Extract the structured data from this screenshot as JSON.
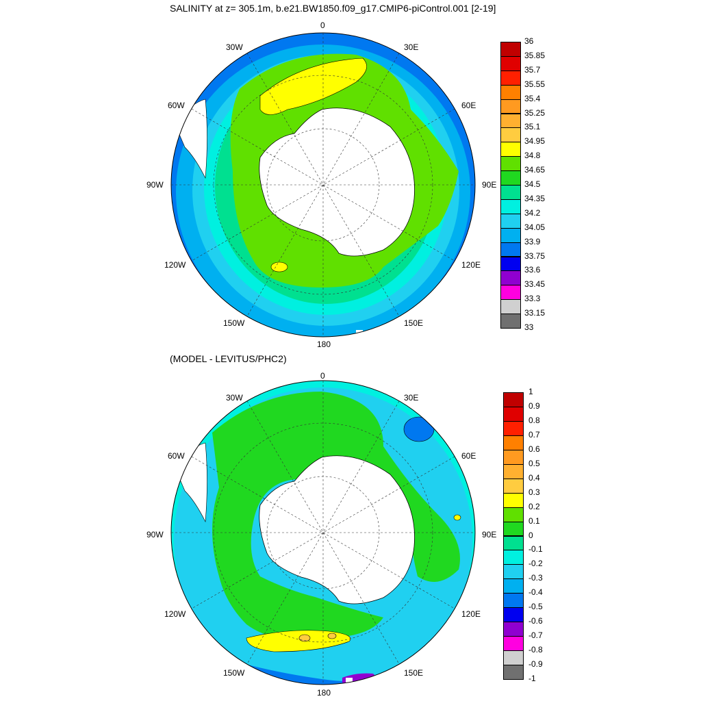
{
  "figure": {
    "title_top": "SALINITY at z= 305.1m, b.e21.BW1850.f09_g17.CMIP6-piControl.001 [2-19]",
    "title_bottom": "(MODEL - LEVITUS/PHC2)"
  },
  "map_labels": {
    "north": "0",
    "south": "180",
    "w30": "30W",
    "e30": "30E",
    "w60": "60W",
    "e60": "60E",
    "w90": "90W",
    "e90": "90E",
    "w120": "120W",
    "e120": "120E",
    "w150": "150W",
    "e150": "150E"
  },
  "colorbar_top": {
    "labels": [
      "36",
      "35.85",
      "35.7",
      "35.55",
      "35.4",
      "35.25",
      "35.1",
      "34.95",
      "34.8",
      "34.65",
      "34.5",
      "34.35",
      "34.2",
      "34.05",
      "33.9",
      "33.75",
      "33.6",
      "33.45",
      "33.3",
      "33.15",
      "33"
    ],
    "colors": [
      "#c00000",
      "#e00000",
      "#ff2000",
      "#ff8000",
      "#ff9a20",
      "#ffb030",
      "#ffcc40",
      "#ffff00",
      "#60e000",
      "#20d820",
      "#00e090",
      "#00f0e0",
      "#20d0f0",
      "#00b0f0",
      "#0078f0",
      "#0000f0",
      "#9000d0",
      "#ff00e0",
      "#d0d0d0",
      "#707070"
    ]
  },
  "colorbar_bottom": {
    "labels": [
      "1",
      "0.9",
      "0.8",
      "0.7",
      "0.6",
      "0.5",
      "0.4",
      "0.3",
      "0.2",
      "0.1",
      "0",
      "-0.1",
      "-0.2",
      "-0.3",
      "-0.4",
      "-0.5",
      "-0.6",
      "-0.7",
      "-0.8",
      "-0.9",
      "-1"
    ],
    "colors": [
      "#c00000",
      "#e00000",
      "#ff2000",
      "#ff8000",
      "#ff9a20",
      "#ffb030",
      "#ffcc40",
      "#ffff00",
      "#60e000",
      "#20d820",
      "#00e090",
      "#00f0e0",
      "#20d0f0",
      "#00b0f0",
      "#0078f0",
      "#0000f0",
      "#9000d0",
      "#ff00e0",
      "#d0d0d0",
      "#707070"
    ]
  }
}
